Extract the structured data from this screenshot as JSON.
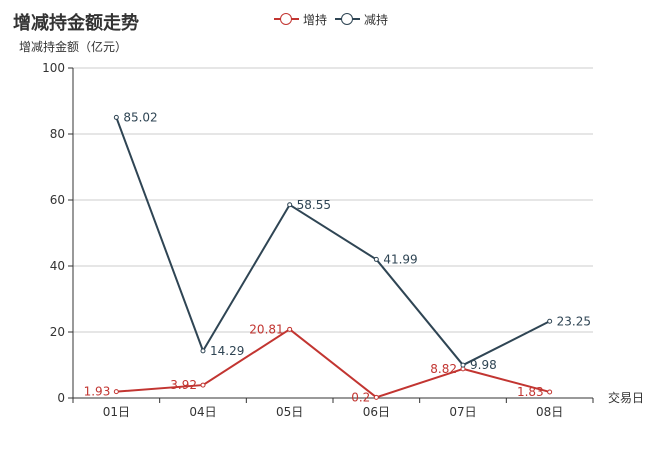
{
  "chart_data": {
    "type": "line",
    "title": "增减持金额走势",
    "ylabel": "增减持金额（亿元）",
    "xlabel": "交易日",
    "categories": [
      "01日",
      "04日",
      "05日",
      "06日",
      "07日",
      "08日"
    ],
    "ylim": [
      0,
      100
    ],
    "yticks": [
      0,
      20,
      40,
      60,
      80,
      100
    ],
    "grid": true,
    "legend_position": "top-center",
    "series": [
      {
        "name": "增持",
        "color": "#c23531",
        "values": [
          1.93,
          3.92,
          20.81,
          0.2,
          8.82,
          1.83
        ]
      },
      {
        "name": "减持",
        "color": "#2f4554",
        "values": [
          85.02,
          14.29,
          58.55,
          41.99,
          9.98,
          23.25
        ]
      }
    ]
  }
}
